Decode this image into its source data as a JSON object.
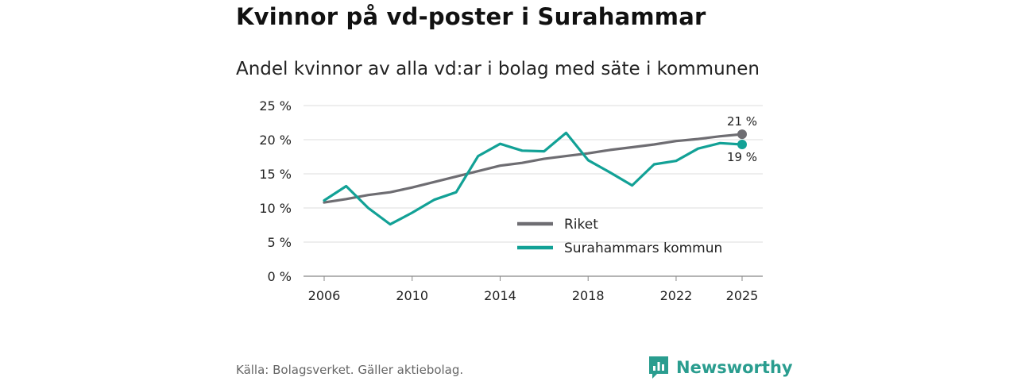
{
  "title": "Kvinnor på vd-poster i Surahammar",
  "subtitle": "Andel kvinnor av alla vd:ar i bolag med säte i kommunen",
  "source": "Källa: Bolagsverket. Gäller aktiebolag.",
  "brand": "Newsworthy",
  "colors": {
    "riket": "#6e6d72",
    "surahammar": "#12a196",
    "grid": "#dddddd",
    "brand": "#2a9d8f"
  },
  "chart_data": {
    "type": "line",
    "title": "Kvinnor på vd-poster i Surahammar",
    "xlabel": "",
    "ylabel": "",
    "xlim": [
      2006,
      2025
    ],
    "ylim": [
      0,
      25
    ],
    "x_ticks": [
      "2006",
      "2010",
      "2014",
      "2018",
      "2022",
      "2025"
    ],
    "y_ticks": [
      "0 %",
      "5 %",
      "10 %",
      "15 %",
      "20 %",
      "25 %"
    ],
    "x": [
      2006,
      2007,
      2008,
      2009,
      2010,
      2011,
      2012,
      2013,
      2014,
      2015,
      2016,
      2017,
      2018,
      2019,
      2020,
      2021,
      2022,
      2023,
      2024,
      2025
    ],
    "series": [
      {
        "name": "Riket",
        "values": [
          10.8,
          11.3,
          11.9,
          12.3,
          13.0,
          13.8,
          14.6,
          15.4,
          16.2,
          16.6,
          17.2,
          17.6,
          18.0,
          18.5,
          18.9,
          19.3,
          19.8,
          20.1,
          20.5,
          20.8
        ],
        "end_label": "21 %"
      },
      {
        "name": "Surahammars kommun",
        "values": [
          11.1,
          13.2,
          10.0,
          7.6,
          9.3,
          11.2,
          12.3,
          17.6,
          19.4,
          18.4,
          18.3,
          21.0,
          17.0,
          15.2,
          13.3,
          16.4,
          16.9,
          18.7,
          19.5,
          19.3
        ],
        "end_label": "19 %"
      }
    ],
    "legend": [
      "Riket",
      "Surahammars kommun"
    ],
    "legend_position": "bottom-right",
    "grid": true
  }
}
